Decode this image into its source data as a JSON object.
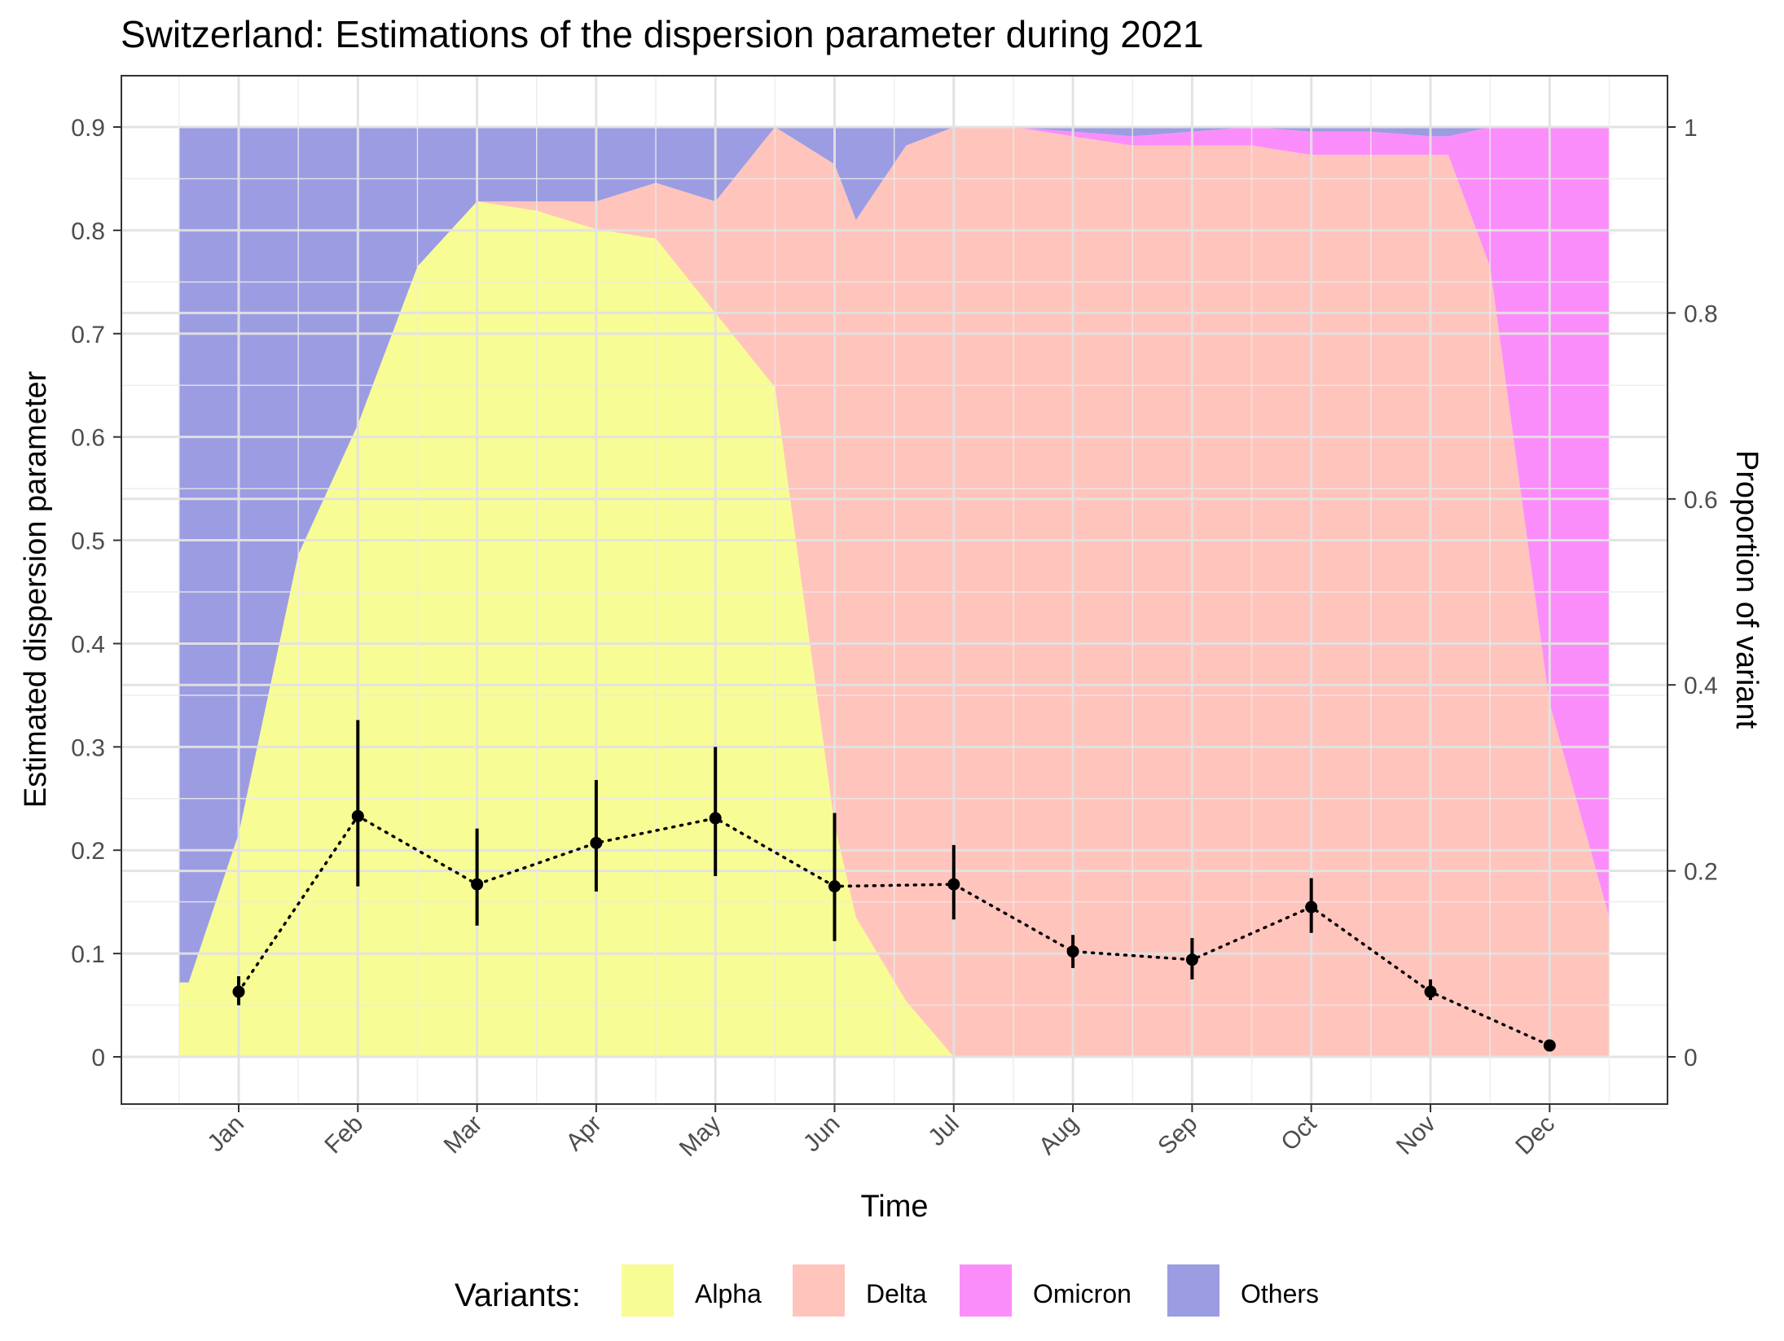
{
  "chart_data": {
    "type": "area",
    "title": "Switzerland: Estimations of the dispersion parameter during 2021",
    "xlabel": "Time",
    "ylabel": "Estimated dispersion parameter",
    "y2label": "Proportion of variant",
    "ylim": [
      -0.048,
      0.95
    ],
    "y_ticks": [
      "0",
      "0.1",
      "0.2",
      "0.3",
      "0.4",
      "0.5",
      "0.6",
      "0.7",
      "0.8",
      "0.9"
    ],
    "y2_ticks": [
      "0",
      "0.2",
      "0.4",
      "0.6",
      "0.8",
      "1"
    ],
    "x_ticks": [
      "Jan",
      "Feb",
      "Mar",
      "Apr",
      "May",
      "Jun",
      "Jul",
      "Aug",
      "Sep",
      "Oct",
      "Nov",
      "Dec"
    ],
    "grid": true,
    "legend": {
      "title": "Variants:",
      "position": "bottom",
      "entries": [
        {
          "name": "Alpha",
          "color": "#f8fc94"
        },
        {
          "name": "Delta",
          "color": "#ffc4bc"
        },
        {
          "name": "Omicron",
          "color": "#fb8dfa"
        },
        {
          "name": "Others",
          "color": "#9c9ce2"
        }
      ]
    },
    "variant_proportions": {
      "x": [
        -0.5,
        -0.42,
        0,
        0.5,
        1,
        1.5,
        2,
        2.5,
        3,
        3.5,
        4,
        4.5,
        5,
        5.18,
        5.6,
        6,
        6.5,
        7,
        7.5,
        8,
        8.5,
        9,
        9.5,
        10,
        10.15,
        10.5,
        11,
        11.5
      ],
      "series": [
        {
          "name": "Alpha",
          "values": [
            0.08,
            0.08,
            0.24,
            0.54,
            0.68,
            0.85,
            0.92,
            0.91,
            0.89,
            0.88,
            0.8,
            0.72,
            0.25,
            0.15,
            0.06,
            0,
            0,
            0,
            0,
            0,
            0,
            0,
            0,
            0,
            0,
            0,
            0,
            0
          ]
        },
        {
          "name": "Delta",
          "values": [
            0,
            0,
            0,
            0,
            0,
            0,
            0,
            0.01,
            0.03,
            0.06,
            0.12,
            0.28,
            0.71,
            0.75,
            0.92,
            1,
            1,
            0.99,
            0.98,
            0.98,
            0.98,
            0.97,
            0.97,
            0.97,
            0.97,
            0.85,
            0.38,
            0.15
          ]
        },
        {
          "name": "Omicron",
          "values": [
            0,
            0,
            0,
            0,
            0,
            0,
            0,
            0,
            0,
            0,
            0,
            0,
            0,
            0,
            0,
            0,
            0,
            0.005,
            0.01,
            0.015,
            0.02,
            0.025,
            0.025,
            0.02,
            0.02,
            0.15,
            0.62,
            0.85
          ]
        },
        {
          "name": "Others",
          "values": [
            0.92,
            0.92,
            0.76,
            0.46,
            0.32,
            0.15,
            0.08,
            0.08,
            0.08,
            0.06,
            0.08,
            0.0,
            0.04,
            0.1,
            0.02,
            0,
            0,
            0.005,
            0.01,
            0.005,
            0.0,
            0.005,
            0.005,
            0.01,
            0.01,
            0,
            0,
            0
          ]
        }
      ]
    },
    "dispersion_estimates": {
      "months": [
        "Jan",
        "Feb",
        "Mar",
        "Apr",
        "May",
        "Jun",
        "Jul",
        "Aug",
        "Sep",
        "Oct",
        "Nov",
        "Dec"
      ],
      "values": [
        0.063,
        0.233,
        0.167,
        0.207,
        0.231,
        0.165,
        0.167,
        0.102,
        0.094,
        0.145,
        0.063,
        0.011
      ],
      "lower": [
        0.05,
        0.165,
        0.127,
        0.16,
        0.175,
        0.112,
        0.133,
        0.086,
        0.075,
        0.12,
        0.055,
        0.007
      ],
      "upper": [
        0.078,
        0.326,
        0.221,
        0.268,
        0.3,
        0.236,
        0.205,
        0.118,
        0.115,
        0.173,
        0.075,
        0.015
      ]
    }
  }
}
